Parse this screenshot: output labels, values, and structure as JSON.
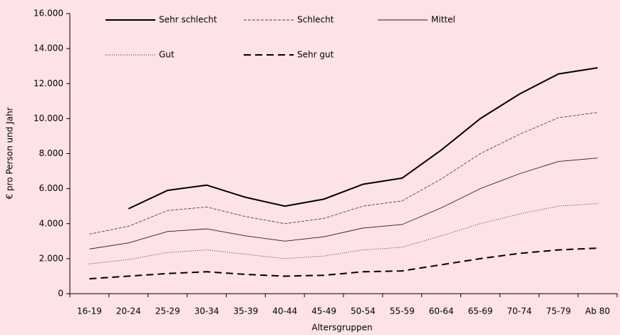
{
  "chart_data": {
    "type": "line",
    "x_label": "Altersgruppen",
    "y_label": "€ pro Person und Jahr",
    "categories": [
      "16-19",
      "20-24",
      "25-29",
      "30-34",
      "35-39",
      "40-44",
      "45-49",
      "50-54",
      "55-59",
      "60-64",
      "65-69",
      "70-74",
      "75-79",
      "Ab 80"
    ],
    "ylim": [
      0,
      16000
    ],
    "yticks": [
      0,
      {
        "value": 2000,
        "label": "2.000"
      },
      {
        "value": 4000,
        "label": "4.000"
      },
      {
        "value": 6000,
        "label": "6.000"
      },
      {
        "value": 8000,
        "label": "8.000"
      },
      {
        "value": 10000,
        "label": "10.000"
      },
      {
        "value": 12000,
        "label": "12.000"
      },
      {
        "value": 14000,
        "label": "14.000"
      },
      {
        "value": 16000,
        "label": "16.000"
      }
    ],
    "grid": false,
    "series": [
      {
        "name": "Sehr schlecht",
        "color": "#000000",
        "width": 2,
        "dash": "none",
        "values": [
          null,
          4850,
          5900,
          6200,
          5500,
          5000,
          5400,
          6250,
          6600,
          8200,
          10000,
          11400,
          12550,
          12900
        ]
      },
      {
        "name": "Schlecht",
        "color": "#444444",
        "width": 0.9,
        "dash": "4,2",
        "values": [
          3400,
          3850,
          4750,
          4950,
          4400,
          4000,
          4300,
          5000,
          5300,
          6550,
          8000,
          9100,
          10050,
          10350
        ]
      },
      {
        "name": "Mittel",
        "color": "#222222",
        "width": 0.9,
        "dash": "none",
        "values": [
          2550,
          2900,
          3550,
          3700,
          3300,
          3000,
          3250,
          3750,
          3950,
          4900,
          6000,
          6850,
          7550,
          7750
        ]
      },
      {
        "name": "Gut",
        "color": "#222222",
        "width": 0.9,
        "dash": "1,2",
        "values": [
          1700,
          1950,
          2350,
          2500,
          2250,
          2000,
          2150,
          2500,
          2650,
          3300,
          4000,
          4550,
          5000,
          5150
        ]
      },
      {
        "name": "Sehr gut",
        "color": "#000000",
        "width": 2,
        "dash": "10,6",
        "values": [
          850,
          1000,
          1150,
          1250,
          1100,
          1000,
          1050,
          1250,
          1300,
          1650,
          2000,
          2300,
          2500,
          2600
        ]
      }
    ]
  }
}
